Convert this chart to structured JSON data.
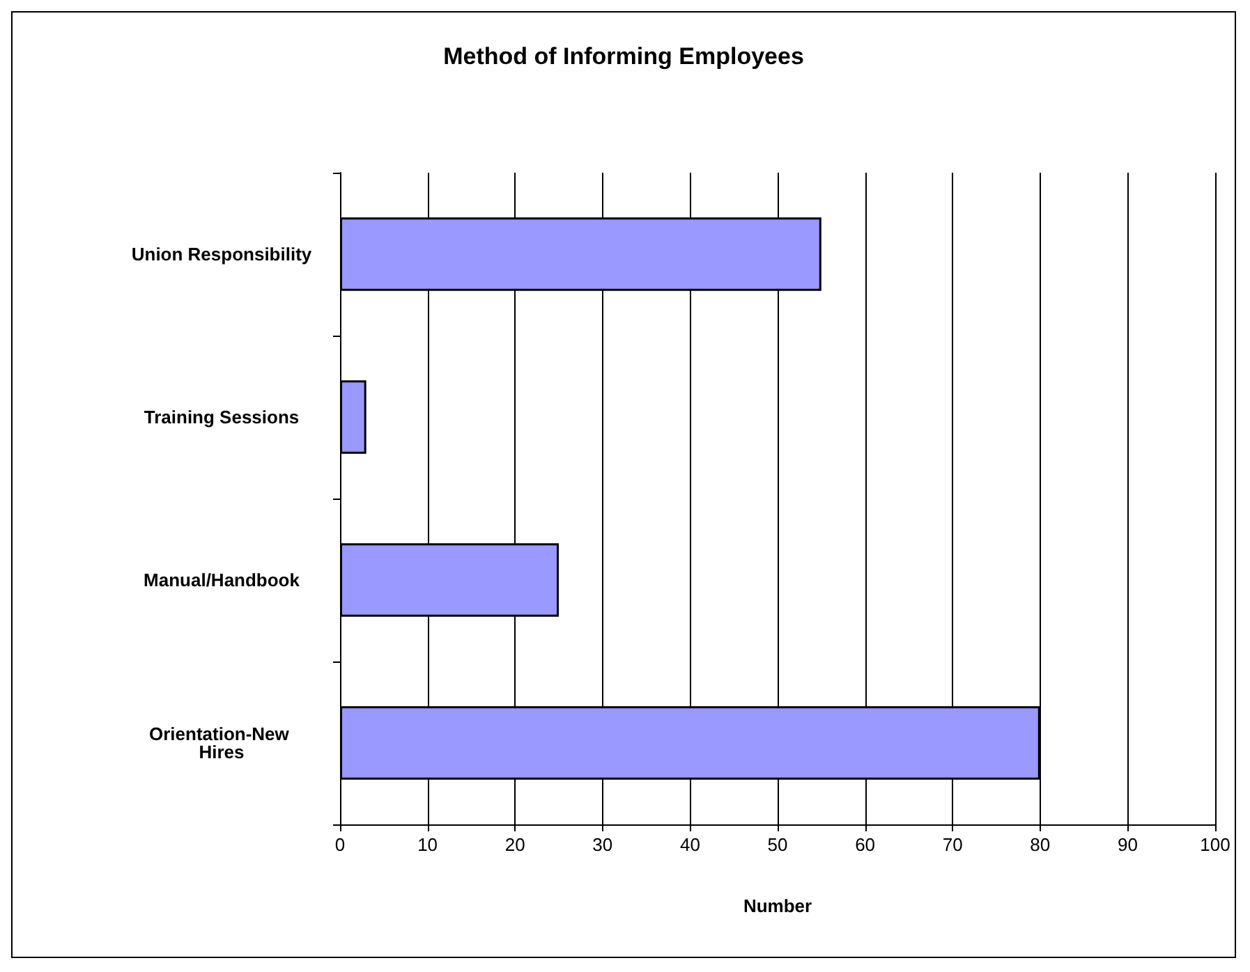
{
  "chart_data": {
    "type": "bar",
    "orientation": "horizontal",
    "title": "Method of Informing Employees",
    "xlabel": "Number",
    "categories": [
      "Union Responsibility",
      "Training Sessions",
      "Manual/Handbook",
      "Orientation-New Hires"
    ],
    "values": [
      55,
      3,
      25,
      80
    ],
    "color": "#9999ff",
    "xlim": [
      0,
      100
    ],
    "xticks": [
      0,
      10,
      20,
      30,
      40,
      50,
      60,
      70,
      80,
      90,
      100
    ],
    "grid": "x"
  }
}
